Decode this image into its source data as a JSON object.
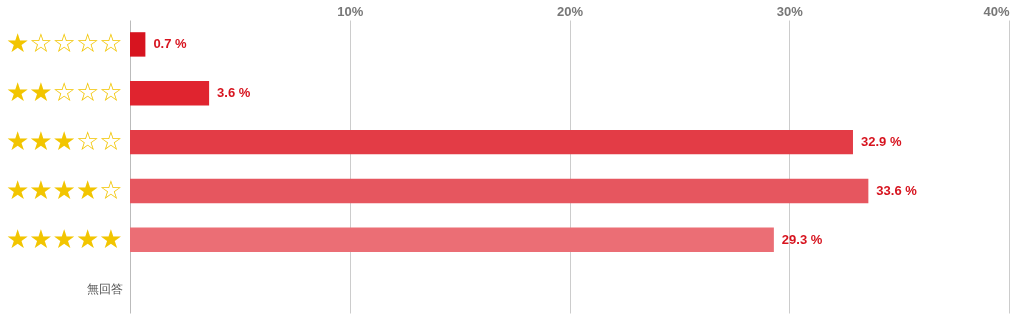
{
  "chart_data": {
    "type": "bar",
    "orientation": "horizontal",
    "categories": [
      "★☆☆☆☆",
      "★★☆☆☆",
      "★★★☆☆",
      "★★★★☆",
      "★★★★★",
      "無回答"
    ],
    "values": [
      0.7,
      3.6,
      32.9,
      33.6,
      29.3,
      null
    ],
    "value_labels": [
      "0.7 %",
      "3.6 %",
      "32.9 %",
      "33.6 %",
      "29.3 %",
      null
    ],
    "colors": [
      "#d7141f",
      "#e0242f",
      "#e33c46",
      "#e6565f",
      "#eb6e75",
      "#eb6e75"
    ],
    "xlim": [
      0,
      40
    ],
    "xticks": [
      {
        "value": 10,
        "label": "10%"
      },
      {
        "value": 20,
        "label": "20%"
      },
      {
        "value": 30,
        "label": "30%"
      },
      {
        "value": 40,
        "label": "40%"
      }
    ],
    "grid": "x"
  }
}
